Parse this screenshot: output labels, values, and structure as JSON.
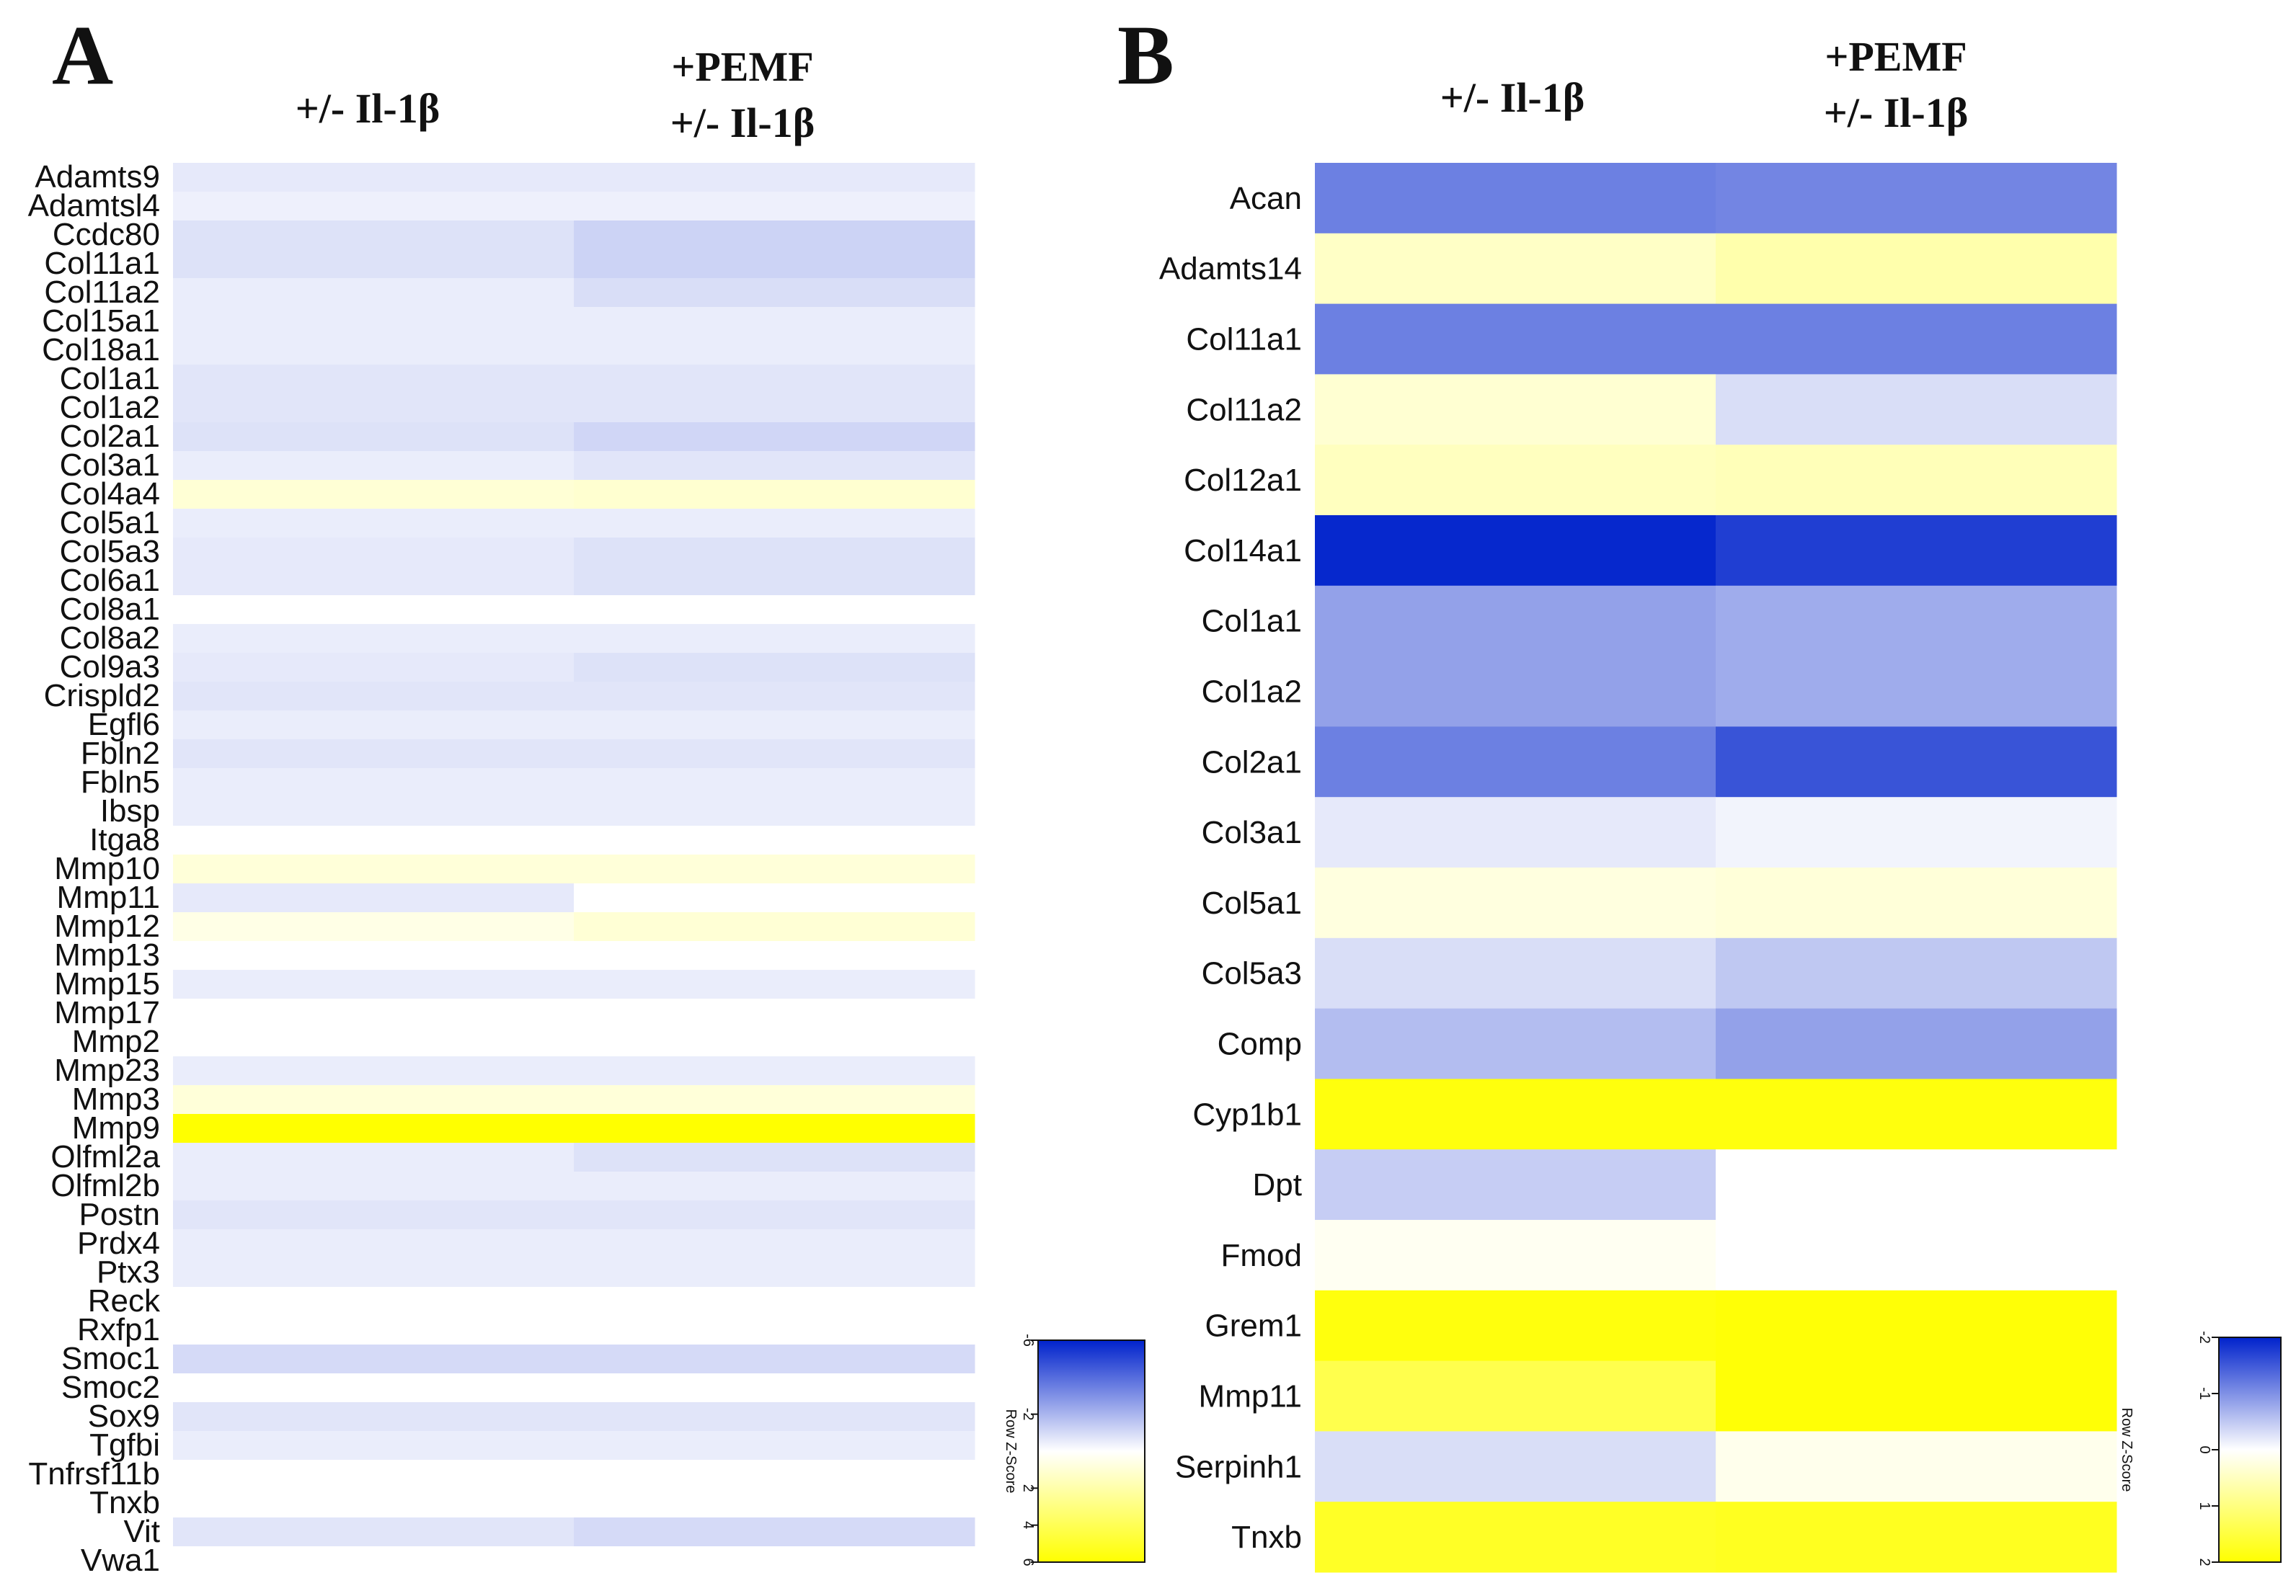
{
  "figure": {
    "panels": [
      {
        "letter": "A",
        "col_header_1": "+/- Il-1β",
        "col_header_2_line1": "+PEMF",
        "col_header_2_line2": "+/- Il-1β",
        "color_key": {
          "label": "Row Z-Score",
          "ticks": [
            "-6",
            "-2",
            "2",
            "4",
            "6"
          ]
        }
      },
      {
        "letter": "B",
        "col_header_1": "+/- Il-1β",
        "col_header_2_line1": "+PEMF",
        "col_header_2_line2": "+/- Il-1β",
        "color_key": {
          "label": "Row Z-Score",
          "ticks": [
            "-2",
            "-1",
            "0",
            "1",
            "2"
          ]
        }
      }
    ]
  },
  "colors": {
    "low": "#0022cc",
    "mid": "#ffffff",
    "high": "#ffff00"
  },
  "chart_data": [
    {
      "type": "heatmap",
      "panel": "A",
      "columns": [
        "+/- Il-1β",
        "+PEMF +/- Il-1β"
      ],
      "value_range": [
        -6,
        6
      ],
      "colorbar_label": "Row Z-Score",
      "rows": [
        "Adamts9",
        "Adamtsl4",
        "Ccdc80",
        "Col11a1",
        "Col11a2",
        "Col15a1",
        "Col18a1",
        "Col1a1",
        "Col1a2",
        "Col2a1",
        "Col3a1",
        "Col4a4",
        "Col5a1",
        "Col5a3",
        "Col6a1",
        "Col8a1",
        "Col8a2",
        "Col9a3",
        "Crispld2",
        "Egfl6",
        "Fbln2",
        "Fbln5",
        "Ibsp",
        "Itga8",
        "Mmp10",
        "Mmp11",
        "Mmp12",
        "Mmp13",
        "Mmp15",
        "Mmp17",
        "Mmp2",
        "Mmp23",
        "Mmp3",
        "Mmp9",
        "Olfml2a",
        "Olfml2b",
        "Postn",
        "Prdx4",
        "Ptx3",
        "Reck",
        "Rxfp1",
        "Smoc1",
        "Smoc2",
        "Sox9",
        "Tgfbi",
        "Tnfrsf11b",
        "Tnxb",
        "Vit",
        "Vwa1"
      ],
      "values": [
        [
          -0.6,
          -0.6
        ],
        [
          -0.4,
          -0.4
        ],
        [
          -0.8,
          -1.2
        ],
        [
          -0.8,
          -1.2
        ],
        [
          -0.5,
          -0.9
        ],
        [
          -0.5,
          -0.5
        ],
        [
          -0.5,
          -0.5
        ],
        [
          -0.7,
          -0.7
        ],
        [
          -0.7,
          -0.7
        ],
        [
          -0.8,
          -1.1
        ],
        [
          -0.5,
          -0.7
        ],
        [
          1.0,
          1.1
        ],
        [
          -0.5,
          -0.5
        ],
        [
          -0.6,
          -0.8
        ],
        [
          -0.6,
          -0.8
        ],
        [
          0,
          0
        ],
        [
          -0.5,
          -0.5
        ],
        [
          -0.6,
          -0.8
        ],
        [
          -0.7,
          -0.7
        ],
        [
          -0.5,
          -0.5
        ],
        [
          -0.7,
          -0.7
        ],
        [
          -0.5,
          -0.5
        ],
        [
          -0.5,
          -0.5
        ],
        [
          0,
          0
        ],
        [
          0.9,
          0.9
        ],
        [
          -0.6,
          0
        ],
        [
          0.6,
          1.0
        ],
        [
          0,
          0
        ],
        [
          -0.5,
          -0.5
        ],
        [
          0,
          0
        ],
        [
          0,
          0
        ],
        [
          -0.5,
          -0.5
        ],
        [
          0.9,
          0.9
        ],
        [
          6,
          6
        ],
        [
          -0.5,
          -0.8
        ],
        [
          -0.5,
          -0.5
        ],
        [
          -0.7,
          -0.7
        ],
        [
          -0.5,
          -0.5
        ],
        [
          -0.5,
          -0.5
        ],
        [
          0,
          0
        ],
        [
          0,
          0
        ],
        [
          -1.0,
          -1.0
        ],
        [
          0,
          0
        ],
        [
          -0.7,
          -0.7
        ],
        [
          -0.5,
          -0.5
        ],
        [
          0,
          0
        ],
        [
          0,
          0
        ],
        [
          -0.7,
          -1.0
        ],
        [
          0,
          0
        ]
      ]
    },
    {
      "type": "heatmap",
      "panel": "B",
      "columns": [
        "+/- Il-1β",
        "+PEMF +/- Il-1β"
      ],
      "value_range": [
        -2,
        2
      ],
      "colorbar_label": "Row Z-Score",
      "rows": [
        "Acan",
        "Adamts14",
        "Col11a1",
        "Col11a2",
        "Col12a1",
        "Col14a1",
        "Col1a1",
        "Col1a2",
        "Col2a1",
        "Col3a1",
        "Col5a1",
        "Col5a3",
        "Comp",
        "Cyp1b1",
        "Dpt",
        "Fmod",
        "Grem1",
        "Mmp11",
        "Serpinh1",
        "Tnxb"
      ],
      "values": [
        [
          -1.15,
          -1.1
        ],
        [
          0.45,
          0.65
        ],
        [
          -1.15,
          -1.15
        ],
        [
          0.35,
          -0.3
        ],
        [
          0.5,
          0.55
        ],
        [
          -1.95,
          -1.75
        ],
        [
          -0.85,
          -0.75
        ],
        [
          -0.85,
          -0.75
        ],
        [
          -1.15,
          -1.55
        ],
        [
          -0.2,
          -0.1
        ],
        [
          0.25,
          0.3
        ],
        [
          -0.3,
          -0.5
        ],
        [
          -0.6,
          -0.85
        ],
        [
          1.9,
          1.9
        ],
        [
          -0.45,
          0
        ],
        [
          0.1,
          0
        ],
        [
          1.9,
          1.95
        ],
        [
          1.4,
          1.95
        ],
        [
          -0.3,
          0.15
        ],
        [
          1.7,
          1.75
        ]
      ]
    }
  ]
}
